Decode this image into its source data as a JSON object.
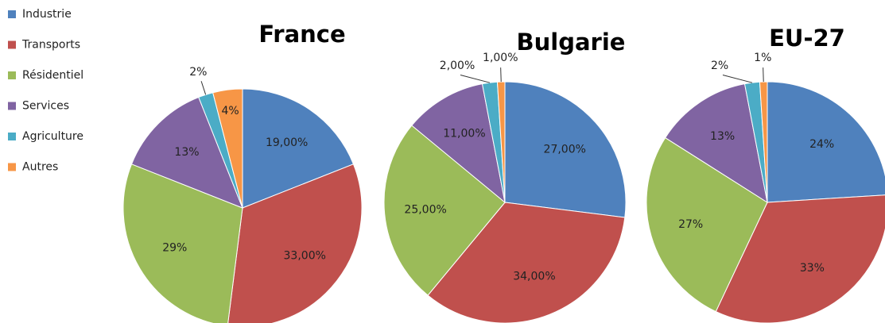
{
  "legend": {
    "categories": [
      "Industrie",
      "Transports",
      "Résidentiel",
      "Services",
      "Agriculture",
      "Autres"
    ],
    "colors": [
      "#4f81bd",
      "#c0504d",
      "#9bbb59",
      "#8064a2",
      "#4bacc6",
      "#f79646"
    ]
  },
  "chart_data": [
    {
      "type": "pie",
      "title": "France",
      "values": [
        19,
        33,
        29,
        13,
        2,
        4
      ],
      "value_labels": [
        "19,00%",
        "33,00%",
        "29%",
        "13%",
        "2%",
        "4%"
      ]
    },
    {
      "type": "pie",
      "title": "Bulgarie",
      "values": [
        27,
        34,
        25,
        11,
        2,
        1
      ],
      "value_labels": [
        "27,00%",
        "34,00%",
        "25,00%",
        "11,00%",
        "2,00%",
        "1,00%"
      ]
    },
    {
      "type": "pie",
      "title": "EU-27",
      "values": [
        24,
        33,
        27,
        13,
        2,
        1
      ],
      "value_labels": [
        "24%",
        "33%",
        "27%",
        "13%",
        "2%",
        "1%"
      ]
    }
  ]
}
